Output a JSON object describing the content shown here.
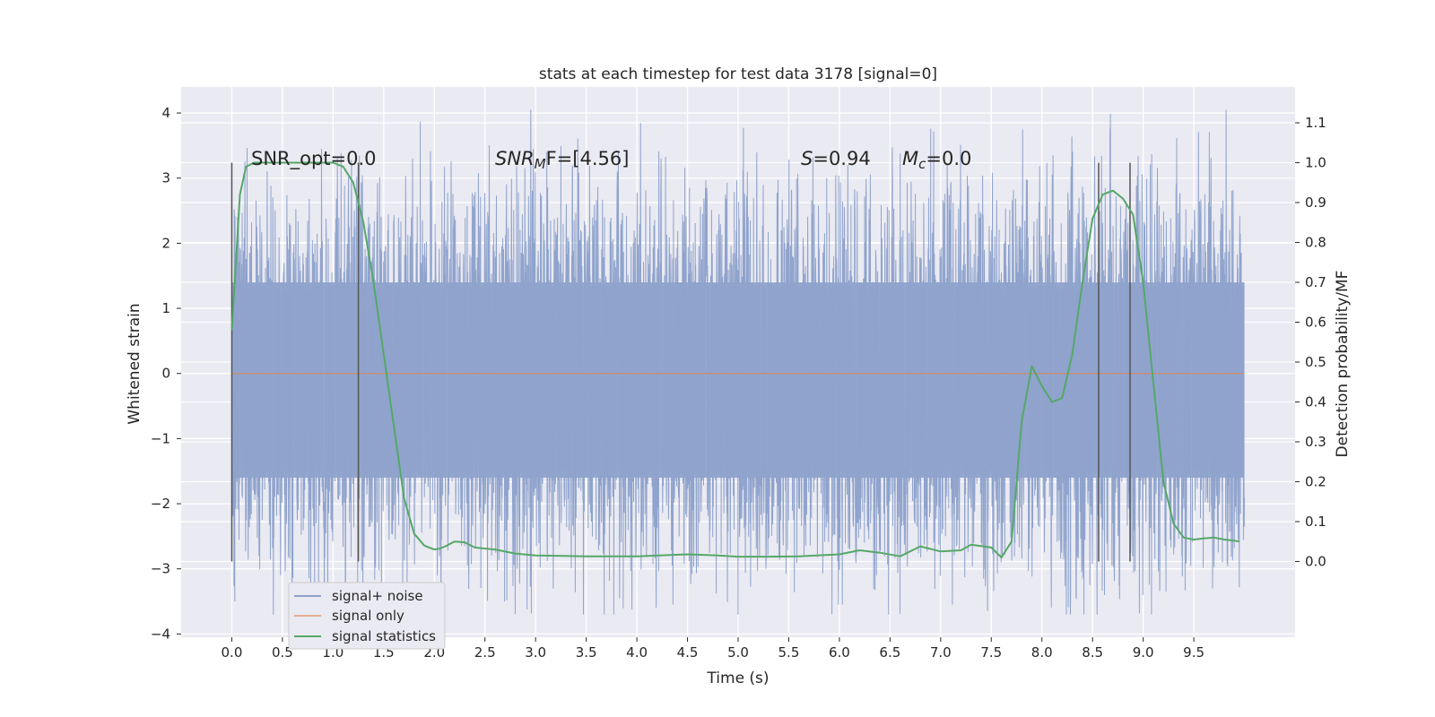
{
  "chart_data": {
    "type": "line",
    "title": "stats at each timestep for test data 3178 [signal=0]",
    "xlabel": "Time (s)",
    "ylabel": "Whitened strain",
    "ylabel_right": "Detection probability/MF",
    "xlim": [
      -0.5,
      10.5
    ],
    "ylim": [
      -4.05,
      4.4
    ],
    "ylim_right": [
      -0.19,
      1.19
    ],
    "grid": true,
    "legend_position": "lower-left",
    "x_ticks": [
      "0.0",
      "0.5",
      "1.0",
      "1.5",
      "2.0",
      "2.5",
      "3.0",
      "3.5",
      "4.0",
      "4.5",
      "5.0",
      "5.5",
      "6.0",
      "6.5",
      "7.0",
      "7.5",
      "8.0",
      "8.5",
      "9.0",
      "9.5"
    ],
    "y_ticks": [
      "4",
      "3",
      "2",
      "1",
      "0",
      "−1",
      "−2",
      "−3",
      "−4"
    ],
    "y_ticks_right": [
      "1.1",
      "1.0",
      "0.9",
      "0.8",
      "0.7",
      "0.6",
      "0.5",
      "0.4",
      "0.3",
      "0.2",
      "0.1",
      "0.0"
    ],
    "annotations": {
      "snr_opt": "SNR_opt=0.0",
      "snr_mf_label": "SNR",
      "snr_mf_sub": "M",
      "snr_mf_rest": "F=[4.56]",
      "s_label": "S",
      "s_rest": "=0.94",
      "mc_label": "M",
      "mc_sub": "c",
      "mc_rest": "=0.0"
    },
    "vertical_markers": [
      0.0,
      1.25,
      8.56,
      8.87
    ],
    "series": [
      {
        "name": "signal+ noise",
        "color": "#8fa3cc",
        "axis": "left",
        "kind": "noise",
        "x_range": [
          0.0,
          10.0
        ],
        "envelope_upper": 1.4,
        "envelope_lower": -1.6,
        "max": 4.05,
        "min": -3.7
      },
      {
        "name": "signal only",
        "color": "#dd8452",
        "axis": "left",
        "x": [
          0.0,
          10.0
        ],
        "y": [
          0.0,
          0.0
        ]
      },
      {
        "name": "signal statistics",
        "color": "#55a868",
        "axis": "right",
        "x": [
          0.0,
          0.04,
          0.08,
          0.14,
          0.22,
          0.3,
          0.5,
          0.8,
          1.0,
          1.1,
          1.2,
          1.3,
          1.4,
          1.5,
          1.6,
          1.7,
          1.8,
          1.9,
          1.95,
          2.0,
          2.05,
          2.1,
          2.2,
          2.3,
          2.4,
          2.6,
          2.8,
          3.0,
          3.5,
          4.0,
          4.5,
          4.8,
          5.0,
          5.3,
          5.6,
          6.0,
          6.2,
          6.4,
          6.6,
          6.8,
          7.0,
          7.2,
          7.3,
          7.5,
          7.6,
          7.7,
          7.8,
          7.9,
          8.0,
          8.1,
          8.2,
          8.3,
          8.4,
          8.5,
          8.6,
          8.7,
          8.8,
          8.9,
          9.0,
          9.1,
          9.2,
          9.3,
          9.4,
          9.5,
          9.6,
          9.7,
          9.8,
          9.9,
          9.95
        ],
        "y": [
          0.58,
          0.75,
          0.92,
          0.99,
          1.0,
          1.0,
          1.0,
          1.0,
          1.0,
          0.99,
          0.95,
          0.85,
          0.7,
          0.52,
          0.34,
          0.16,
          0.07,
          0.04,
          0.035,
          0.03,
          0.032,
          0.037,
          0.05,
          0.048,
          0.035,
          0.03,
          0.02,
          0.015,
          0.013,
          0.013,
          0.018,
          0.015,
          0.012,
          0.012,
          0.013,
          0.018,
          0.028,
          0.022,
          0.013,
          0.038,
          0.025,
          0.028,
          0.042,
          0.035,
          0.01,
          0.05,
          0.35,
          0.49,
          0.44,
          0.4,
          0.41,
          0.52,
          0.7,
          0.86,
          0.92,
          0.93,
          0.91,
          0.87,
          0.7,
          0.45,
          0.2,
          0.095,
          0.06,
          0.055,
          0.058,
          0.06,
          0.055,
          0.052,
          0.05
        ]
      }
    ]
  }
}
